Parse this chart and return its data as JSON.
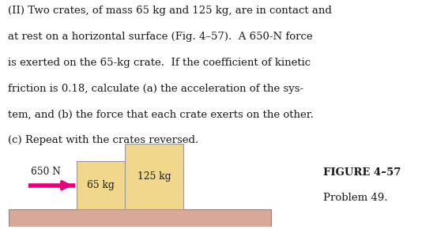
{
  "background_color": "#ffffff",
  "line1": "(II) Two crates, of mass 65 kg and 125 kg, are in contact and",
  "line2": "at rest on a horizontal surface (Fig. 4–57).  A 650-N force",
  "line3": "is exerted on the 65-kg crate.  If the coefficient of kinetic",
  "line4": "friction is 0.18, calculate (a) the acceleration of the sys-",
  "line5": "tem, and (b) the force that each crate exerts on the other.",
  "line6": "(c) Repeat with the crates reversed.",
  "figure_label": "FIGURE 4–57",
  "problem_label": "Problem 49.",
  "force_label": "650 N",
  "crate1_label": "65 kg",
  "crate2_label": "125 kg",
  "crate_fill_color": "#f0d78c",
  "crate_edge_color": "#999999",
  "ground_fill_color": "#d9a898",
  "ground_edge_color": "#888888",
  "arrow_color": "#e8007a",
  "text_color": "#1a1a1a",
  "fig_label_color": "#1a1a1a",
  "text_fontsize": 9.5,
  "label_fontsize": 8.8,
  "fig_label_fontsize": 9.5
}
